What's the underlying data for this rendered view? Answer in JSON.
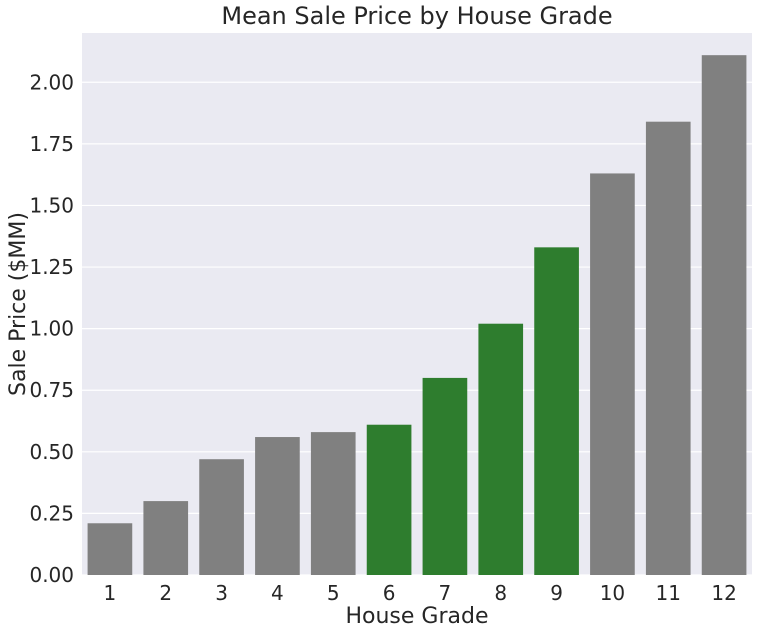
{
  "colors": {
    "background": "#EAEAF2",
    "grid": "#FFFFFF",
    "bar_default": "#808080",
    "bar_highlight": "#2E7D2E",
    "text": "#262626"
  },
  "chart_data": {
    "type": "bar",
    "title": "Mean Sale Price by House Grade",
    "xlabel": "House Grade",
    "ylabel": "Sale Price ($MM)",
    "categories": [
      "1",
      "2",
      "3",
      "4",
      "5",
      "6",
      "7",
      "8",
      "9",
      "10",
      "11",
      "12"
    ],
    "values": [
      0.21,
      0.3,
      0.47,
      0.56,
      0.58,
      0.61,
      0.8,
      1.02,
      1.33,
      1.63,
      1.84,
      2.11
    ],
    "highlight": [
      false,
      false,
      false,
      false,
      false,
      true,
      true,
      true,
      true,
      false,
      false,
      false
    ],
    "ylim": [
      0,
      2.2
    ],
    "yticks": [
      0.0,
      0.25,
      0.5,
      0.75,
      1.0,
      1.25,
      1.5,
      1.75,
      2.0
    ],
    "ytick_labels": [
      "0.00",
      "0.25",
      "0.50",
      "0.75",
      "1.00",
      "1.25",
      "1.50",
      "1.75",
      "2.00"
    ],
    "grid": true,
    "legend": "none"
  }
}
